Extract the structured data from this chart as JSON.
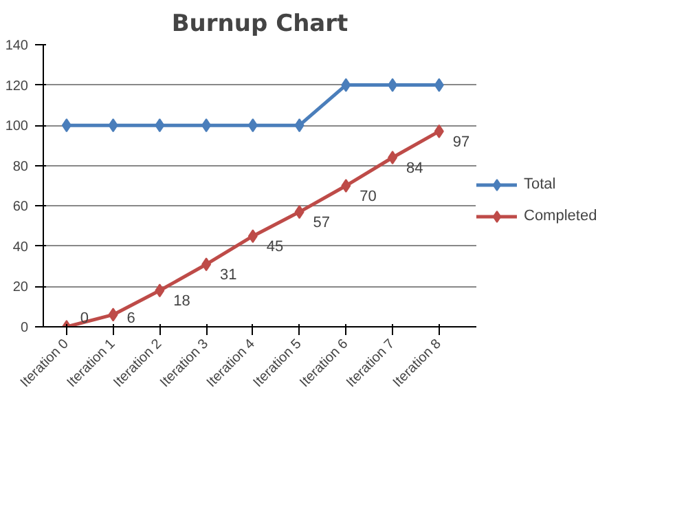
{
  "chart_data": {
    "type": "line",
    "title": "Burnup Chart",
    "categories": [
      "Iteration 0",
      "Iteration 1",
      "Iteration 2",
      "Iteration 3",
      "Iteration 4",
      "Iteration 5",
      "Iteration 6",
      "Iteration 7",
      "Iteration 8"
    ],
    "series": [
      {
        "name": "Total",
        "color": "#4a7ebb",
        "values": [
          100,
          100,
          100,
          100,
          100,
          100,
          120,
          120,
          120
        ]
      },
      {
        "name": "Completed",
        "color": "#be4b48",
        "values": [
          0,
          6,
          18,
          31,
          45,
          57,
          70,
          84,
          97
        ],
        "value_labels": [
          "0",
          "6",
          "18",
          "31",
          "45",
          "57",
          "70",
          "84",
          "97"
        ]
      }
    ],
    "ylim": [
      0,
      140
    ],
    "yticks": [
      0,
      20,
      40,
      60,
      80,
      100,
      120,
      140
    ],
    "grid": "y",
    "legend": "right",
    "marker": "diamond",
    "line_style": "solid"
  }
}
